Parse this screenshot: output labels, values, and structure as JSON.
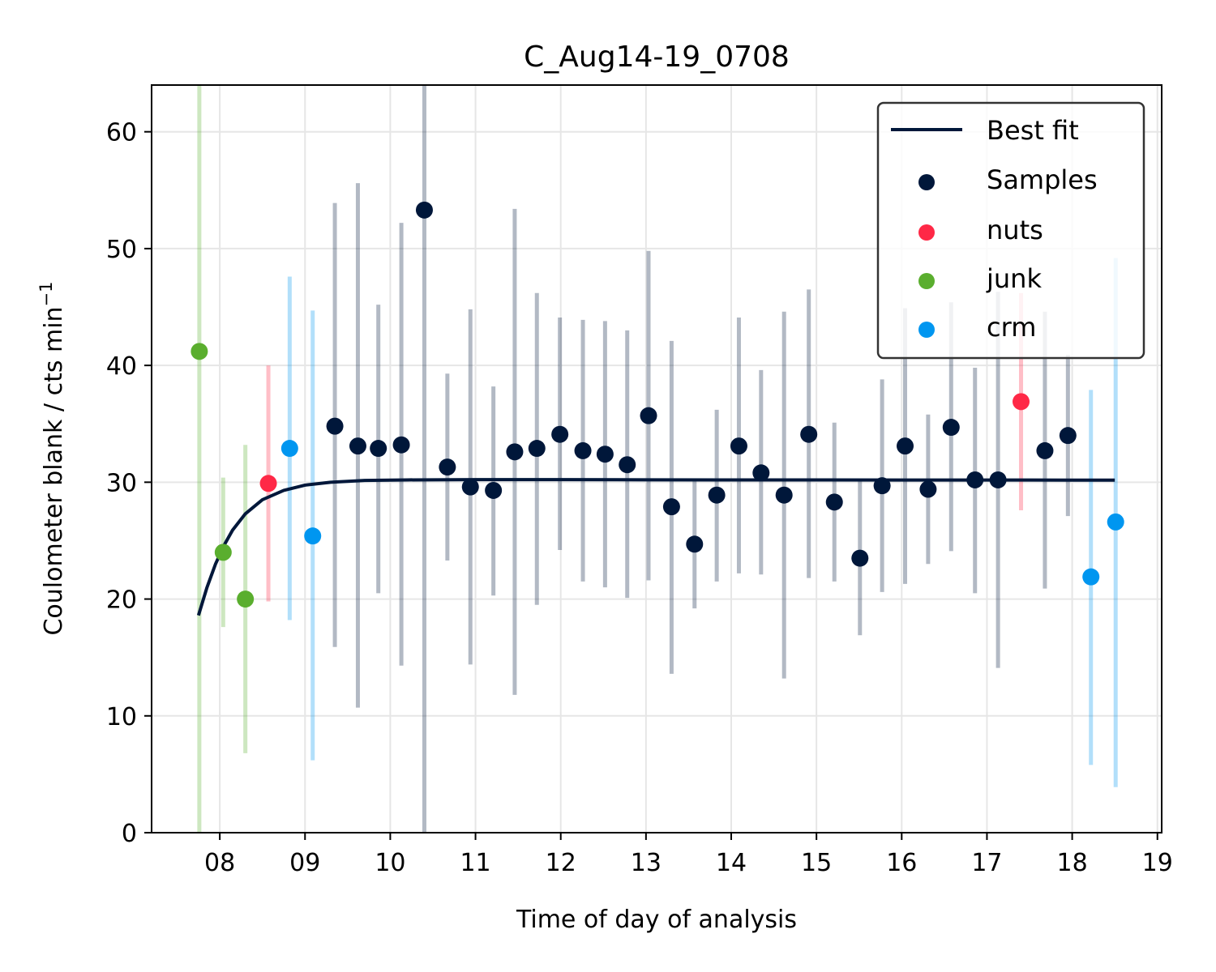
{
  "chart_data": {
    "type": "scatter",
    "title": "C_Aug14-19_0708",
    "xlabel": "Time of day of analysis",
    "ylabel": "Coulometer blank / cts min",
    "ylabel_superscript": "−1",
    "xlim": [
      7.2,
      19.05
    ],
    "ylim": [
      0,
      64
    ],
    "xticks": [
      8,
      9,
      10,
      11,
      12,
      13,
      14,
      15,
      16,
      17,
      18,
      19
    ],
    "xtick_labels": [
      "08",
      "09",
      "10",
      "11",
      "12",
      "13",
      "14",
      "15",
      "16",
      "17",
      "18",
      "19"
    ],
    "yticks": [
      0,
      10,
      20,
      30,
      40,
      50,
      60
    ],
    "ytick_labels": [
      "0",
      "10",
      "20",
      "30",
      "40",
      "50",
      "60"
    ],
    "grid": true,
    "legend_position": "top-right",
    "colors": {
      "fit": "#00173a",
      "samples": "#00173a",
      "nuts": "#ff2846",
      "junk": "#5aae2e",
      "crm": "#0096f0"
    },
    "best_fit": {
      "name": "Best fit",
      "x": [
        7.75,
        7.85,
        7.95,
        8.05,
        8.15,
        8.3,
        8.5,
        8.75,
        9.0,
        9.3,
        9.7,
        10.2,
        11.0,
        12.0,
        13.0,
        14.0,
        15.0,
        16.0,
        17.0,
        18.0,
        18.5
      ],
      "y": [
        18.6,
        21.0,
        23.0,
        24.6,
        25.9,
        27.3,
        28.5,
        29.3,
        29.75,
        30.0,
        30.15,
        30.2,
        30.22,
        30.22,
        30.21,
        30.2,
        30.2,
        30.19,
        30.19,
        30.18,
        30.18
      ]
    },
    "series": [
      {
        "name": "Samples",
        "x": [
          9.35,
          9.62,
          9.86,
          10.13,
          10.4,
          10.67,
          10.94,
          11.21,
          11.46,
          11.72,
          11.99,
          12.26,
          12.52,
          12.78,
          13.03,
          13.3,
          13.57,
          13.83,
          14.09,
          14.35,
          14.62,
          14.91,
          15.21,
          15.51,
          15.77,
          16.04,
          16.31,
          16.58,
          16.86,
          17.13,
          17.68,
          17.95
        ],
        "y": [
          34.8,
          33.1,
          32.9,
          33.2,
          53.3,
          31.3,
          29.6,
          29.3,
          32.6,
          32.9,
          34.1,
          32.7,
          32.4,
          31.5,
          35.7,
          27.9,
          24.7,
          28.9,
          33.1,
          30.8,
          28.9,
          34.1,
          28.3,
          23.5,
          29.7,
          33.1,
          29.4,
          34.7,
          30.2,
          30.2,
          32.7,
          34.0
        ],
        "err_low": [
          15.9,
          10.7,
          20.5,
          14.3,
          0.0,
          23.3,
          14.4,
          20.3,
          11.8,
          19.5,
          24.2,
          21.5,
          21.0,
          20.1,
          21.6,
          13.6,
          19.2,
          21.5,
          22.2,
          22.1,
          13.2,
          21.8,
          21.5,
          16.9,
          20.6,
          21.3,
          23.0,
          24.1,
          20.5,
          14.1,
          20.9,
          27.1
        ],
        "err_high": [
          53.9,
          55.6,
          45.2,
          52.2,
          64.0,
          39.3,
          44.8,
          38.2,
          53.4,
          46.2,
          44.1,
          43.9,
          43.8,
          43.0,
          49.8,
          42.1,
          30.3,
          36.2,
          44.1,
          39.6,
          44.6,
          46.5,
          35.1,
          30.1,
          38.8,
          44.9,
          35.8,
          45.4,
          39.8,
          46.3,
          44.6,
          40.9
        ]
      },
      {
        "name": "nuts",
        "x": [
          8.57,
          17.4
        ],
        "y": [
          29.9,
          36.9
        ],
        "err_low": [
          19.8,
          27.6
        ],
        "err_high": [
          40.0,
          46.2
        ]
      },
      {
        "name": "junk",
        "x": [
          7.76,
          8.04,
          8.3
        ],
        "y": [
          41.2,
          24.0,
          20.0
        ],
        "err_low": [
          0.0,
          17.6,
          6.8
        ],
        "err_high": [
          64.0,
          30.4,
          33.2
        ]
      },
      {
        "name": "crm",
        "x": [
          8.82,
          9.09,
          18.22,
          18.51
        ],
        "y": [
          32.9,
          25.4,
          21.9,
          26.6
        ],
        "err_low": [
          18.2,
          6.2,
          5.8,
          3.9
        ],
        "err_high": [
          47.6,
          44.7,
          37.9,
          49.2
        ]
      }
    ],
    "legend": [
      "Best fit",
      "Samples",
      "nuts",
      "junk",
      "crm"
    ]
  }
}
